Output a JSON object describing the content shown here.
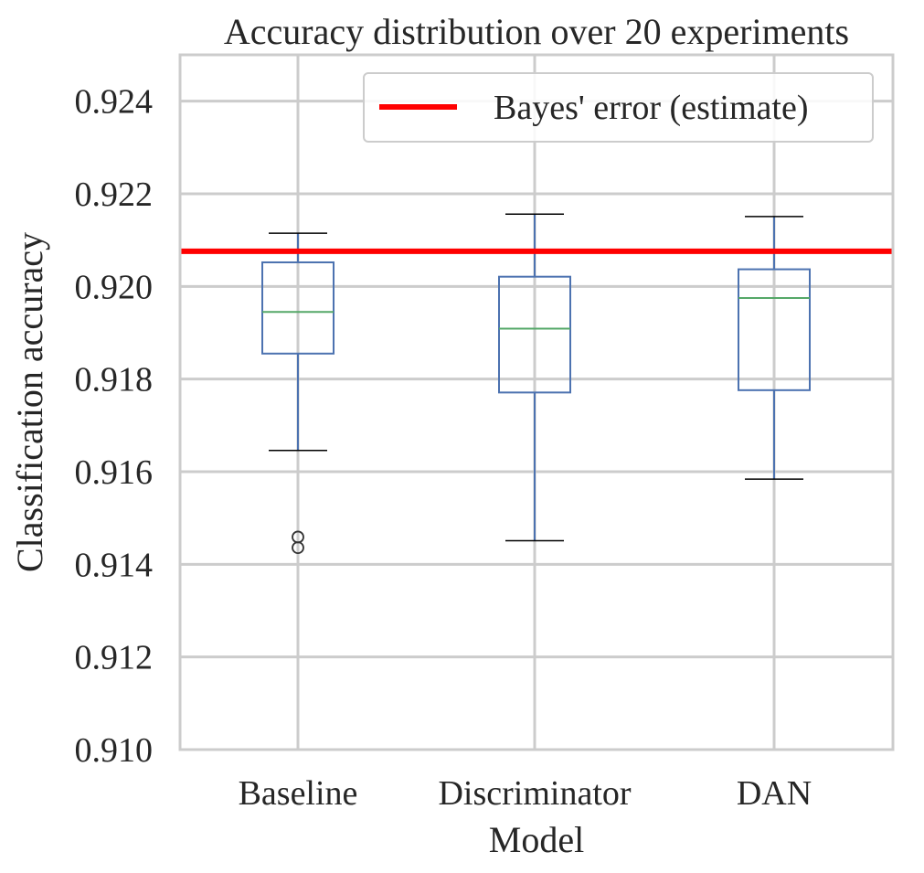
{
  "chart_data": {
    "type": "box",
    "title": "Accuracy distribution over 20 experiments",
    "xlabel": "Model",
    "ylabel": "Classification accuracy",
    "ylim": [
      0.91,
      0.925
    ],
    "yticks": [
      "0.910",
      "0.912",
      "0.914",
      "0.916",
      "0.918",
      "0.920",
      "0.922",
      "0.924"
    ],
    "ytick_values": [
      0.91,
      0.912,
      0.914,
      0.916,
      0.918,
      0.92,
      0.922,
      0.924
    ],
    "categories": [
      "Baseline",
      "Discriminator",
      "DAN"
    ],
    "boxes": [
      {
        "whisker_low": 0.91646,
        "q1": 0.91855,
        "median": 0.91945,
        "q3": 0.92052,
        "whisker_high": 0.92115,
        "outliers": [
          0.91436,
          0.91459
        ]
      },
      {
        "whisker_low": 0.91451,
        "q1": 0.91771,
        "median": 0.91909,
        "q3": 0.92021,
        "whisker_high": 0.92156,
        "outliers": []
      },
      {
        "whisker_low": 0.91584,
        "q1": 0.91776,
        "median": 0.91975,
        "q3": 0.92037,
        "whisker_high": 0.92151,
        "outliers": []
      }
    ],
    "reference_line": {
      "label": "Bayes' error (estimate)",
      "value": 0.92076,
      "color": "#ff0000"
    },
    "legend_position": "top-right",
    "grid": true,
    "colors": {
      "box": "#4c72b0",
      "median": "#55a868",
      "whisker_cap": "#000000",
      "outlier": "#333333",
      "grid": "#cccccc",
      "frame": "#cccccc"
    }
  }
}
